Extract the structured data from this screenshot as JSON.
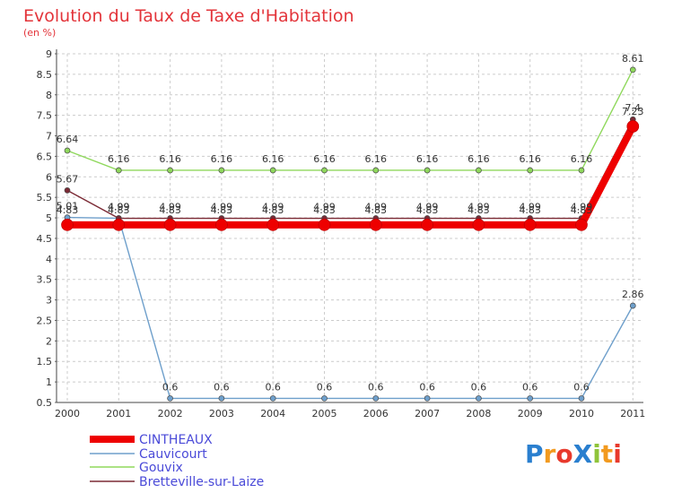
{
  "chart_data": {
    "type": "line",
    "title": "Evolution du Taux de Taxe d'Habitation",
    "subtitle": "(en %)",
    "x": [
      "2000",
      "2001",
      "2002",
      "2003",
      "2004",
      "2005",
      "2006",
      "2007",
      "2008",
      "2009",
      "2010",
      "2011"
    ],
    "ylim": [
      0.5,
      9
    ],
    "yticks": [
      "0.5",
      "1",
      "1.5",
      "2",
      "2.5",
      "3",
      "3.5",
      "4",
      "4.5",
      "5",
      "5.5",
      "6",
      "6.5",
      "7",
      "7.5",
      "8",
      "8.5",
      "9"
    ],
    "grid": true,
    "legend_position": "bottom-left",
    "series": [
      {
        "name": "CINTHEAUX",
        "color": "#ee0000",
        "values": [
          4.83,
          4.83,
          4.83,
          4.83,
          4.83,
          4.83,
          4.83,
          4.83,
          4.83,
          4.83,
          4.83,
          7.23
        ],
        "labels": [
          "4.83",
          "4.83",
          "4.83",
          "4.83",
          "4.83",
          "4.83",
          "4.83",
          "4.83",
          "4.83",
          "4.83",
          "4.83",
          "7.23"
        ]
      },
      {
        "name": "Cauvicourt",
        "color": "#6e9fcb",
        "values": [
          5.01,
          4.99,
          0.6,
          0.6,
          0.6,
          0.6,
          0.6,
          0.6,
          0.6,
          0.6,
          0.6,
          2.86
        ],
        "labels": [
          "5.01",
          "4.99",
          "0.6",
          "0.6",
          "0.6",
          "0.6",
          "0.6",
          "0.6",
          "0.6",
          "0.6",
          "0.6",
          "2.86"
        ]
      },
      {
        "name": "Gouvix",
        "color": "#8fd85c",
        "values": [
          6.64,
          6.16,
          6.16,
          6.16,
          6.16,
          6.16,
          6.16,
          6.16,
          6.16,
          6.16,
          6.16,
          8.61
        ],
        "labels": [
          "6.64",
          "6.16",
          "6.16",
          "6.16",
          "6.16",
          "6.16",
          "6.16",
          "6.16",
          "6.16",
          "6.16",
          "6.16",
          "8.61"
        ]
      },
      {
        "name": "Bretteville-sur-Laize",
        "color": "#7b2a35",
        "values": [
          5.67,
          4.99,
          4.99,
          4.99,
          4.99,
          4.99,
          4.99,
          4.99,
          4.99,
          4.99,
          4.99,
          7.4
        ],
        "labels": [
          "5.67",
          "4.99",
          "4.99",
          "4.99",
          "4.99",
          "4.99",
          "4.99",
          "4.99",
          "4.99",
          "4.99",
          "4.99",
          "7.4"
        ]
      }
    ]
  },
  "logo": {
    "text": "ProXiti"
  }
}
